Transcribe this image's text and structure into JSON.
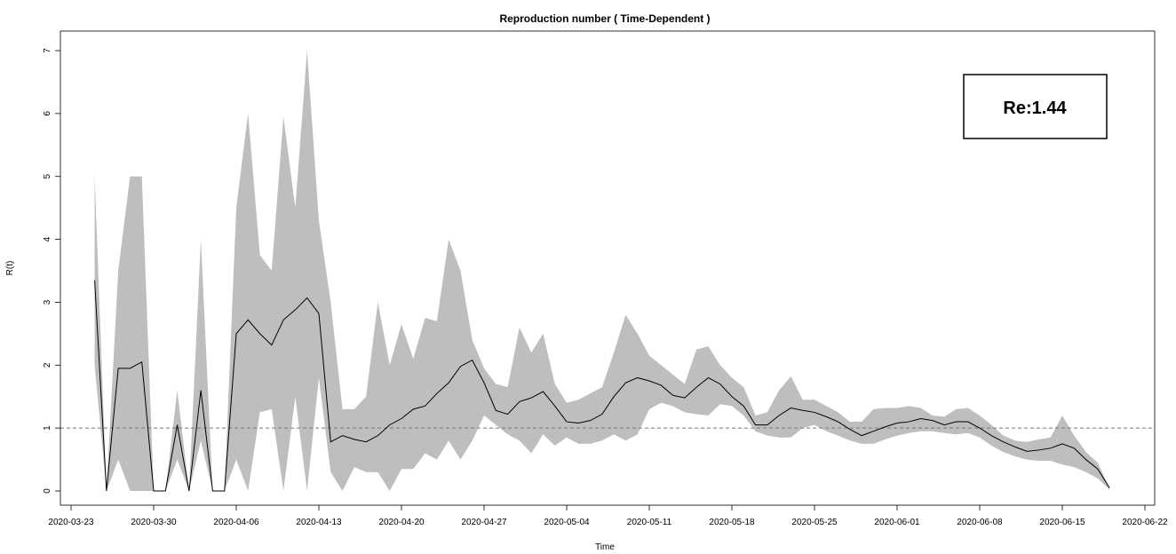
{
  "chart_data": {
    "type": "area",
    "title": "Reproduction number ( Time-Dependent )",
    "xlabel": "Time",
    "ylabel": "R(t)",
    "x_ticks": [
      "2020-03-23",
      "2020-03-30",
      "2020-04-06",
      "2020-04-13",
      "2020-04-20",
      "2020-04-27",
      "2020-05-04",
      "2020-05-11",
      "2020-05-18",
      "2020-05-25",
      "2020-06-01",
      "2020-06-08",
      "2020-06-15",
      "2020-06-22"
    ],
    "y_ticks": [
      "0",
      "1",
      "2",
      "3",
      "4",
      "5",
      "6",
      "7"
    ],
    "xlim": [
      "2020-03-23",
      "2020-06-22"
    ],
    "ylim": [
      0,
      7
    ],
    "reference_line": 1,
    "grid": false,
    "annotation": "Re:1.44",
    "series": [
      {
        "type": "line",
        "color": "#000000",
        "x": [
          "2020-03-25",
          "2020-03-26",
          "2020-03-27",
          "2020-03-28",
          "2020-03-29",
          "2020-03-30",
          "2020-03-31",
          "2020-04-01",
          "2020-04-02",
          "2020-04-03",
          "2020-04-04",
          "2020-04-05",
          "2020-04-06",
          "2020-04-07",
          "2020-04-08",
          "2020-04-09",
          "2020-04-10",
          "2020-04-11",
          "2020-04-12",
          "2020-04-13",
          "2020-04-14",
          "2020-04-15",
          "2020-04-16",
          "2020-04-17",
          "2020-04-18",
          "2020-04-19",
          "2020-04-20",
          "2020-04-21",
          "2020-04-22",
          "2020-04-23",
          "2020-04-24",
          "2020-04-25",
          "2020-04-26",
          "2020-04-27",
          "2020-04-28",
          "2020-04-29",
          "2020-04-30",
          "2020-05-01",
          "2020-05-02",
          "2020-05-03",
          "2020-05-04",
          "2020-05-05",
          "2020-05-06",
          "2020-05-07",
          "2020-05-08",
          "2020-05-09",
          "2020-05-10",
          "2020-05-11",
          "2020-05-12",
          "2020-05-13",
          "2020-05-14",
          "2020-05-15",
          "2020-05-16",
          "2020-05-17",
          "2020-05-18",
          "2020-05-19",
          "2020-05-20",
          "2020-05-21",
          "2020-05-22",
          "2020-05-23",
          "2020-05-24",
          "2020-05-25",
          "2020-05-26",
          "2020-05-27",
          "2020-05-28",
          "2020-05-29",
          "2020-05-30",
          "2020-05-31",
          "2020-06-01",
          "2020-06-02",
          "2020-06-03",
          "2020-06-04",
          "2020-06-05",
          "2020-06-06",
          "2020-06-07",
          "2020-06-08",
          "2020-06-09",
          "2020-06-10",
          "2020-06-11",
          "2020-06-12",
          "2020-06-13",
          "2020-06-14",
          "2020-06-15",
          "2020-06-16",
          "2020-06-17",
          "2020-06-18",
          "2020-06-19"
        ],
        "values": [
          3.35,
          0,
          1.95,
          1.95,
          2.05,
          0,
          0,
          1.05,
          0,
          1.6,
          0,
          0,
          2.5,
          2.72,
          2.5,
          2.32,
          2.72,
          2.88,
          3.07,
          2.82,
          0.78,
          0.88,
          0.82,
          0.78,
          0.88,
          1.05,
          1.15,
          1.3,
          1.35,
          1.55,
          1.72,
          1.98,
          2.08,
          1.72,
          1.28,
          1.22,
          1.42,
          1.48,
          1.58,
          1.35,
          1.1,
          1.08,
          1.12,
          1.22,
          1.5,
          1.72,
          1.8,
          1.75,
          1.68,
          1.52,
          1.48,
          1.65,
          1.8,
          1.7,
          1.5,
          1.35,
          1.05,
          1.05,
          1.2,
          1.32,
          1.28,
          1.25,
          1.18,
          1.1,
          0.98,
          0.88,
          0.95,
          1.02,
          1.08,
          1.1,
          1.15,
          1.12,
          1.05,
          1.1,
          1.1,
          1.0,
          0.88,
          0.78,
          0.7,
          0.63,
          0.65,
          0.68,
          0.75,
          0.68,
          0.5,
          0.35,
          0.05
        ]
      },
      {
        "type": "band",
        "color": "#bebebe",
        "x": [
          "2020-03-25",
          "2020-03-26",
          "2020-03-27",
          "2020-03-28",
          "2020-03-29",
          "2020-03-30",
          "2020-03-31",
          "2020-04-01",
          "2020-04-02",
          "2020-04-03",
          "2020-04-04",
          "2020-04-05",
          "2020-04-06",
          "2020-04-07",
          "2020-04-08",
          "2020-04-09",
          "2020-04-10",
          "2020-04-11",
          "2020-04-12",
          "2020-04-13",
          "2020-04-14",
          "2020-04-15",
          "2020-04-16",
          "2020-04-17",
          "2020-04-18",
          "2020-04-19",
          "2020-04-20",
          "2020-04-21",
          "2020-04-22",
          "2020-04-23",
          "2020-04-24",
          "2020-04-25",
          "2020-04-26",
          "2020-04-27",
          "2020-04-28",
          "2020-04-29",
          "2020-04-30",
          "2020-05-01",
          "2020-05-02",
          "2020-05-03",
          "2020-05-04",
          "2020-05-05",
          "2020-05-06",
          "2020-05-07",
          "2020-05-08",
          "2020-05-09",
          "2020-05-10",
          "2020-05-11",
          "2020-05-12",
          "2020-05-13",
          "2020-05-14",
          "2020-05-15",
          "2020-05-16",
          "2020-05-17",
          "2020-05-18",
          "2020-05-19",
          "2020-05-20",
          "2020-05-21",
          "2020-05-22",
          "2020-05-23",
          "2020-05-24",
          "2020-05-25",
          "2020-05-26",
          "2020-05-27",
          "2020-05-28",
          "2020-05-29",
          "2020-05-30",
          "2020-05-31",
          "2020-06-01",
          "2020-06-02",
          "2020-06-03",
          "2020-06-04",
          "2020-06-05",
          "2020-06-06",
          "2020-06-07",
          "2020-06-08",
          "2020-06-09",
          "2020-06-10",
          "2020-06-11",
          "2020-06-12",
          "2020-06-13",
          "2020-06-14",
          "2020-06-15",
          "2020-06-16",
          "2020-06-17",
          "2020-06-18",
          "2020-06-19"
        ],
        "upper": [
          5.0,
          0,
          3.5,
          5.0,
          5.0,
          0,
          0,
          1.6,
          0,
          4.0,
          0,
          0,
          4.5,
          6.0,
          3.75,
          3.5,
          5.95,
          4.5,
          7.0,
          4.3,
          3.0,
          1.3,
          1.3,
          1.5,
          3.0,
          2.0,
          2.65,
          2.1,
          2.75,
          2.7,
          4.0,
          3.5,
          2.4,
          1.95,
          1.7,
          1.65,
          2.6,
          2.2,
          2.5,
          1.7,
          1.4,
          1.45,
          1.55,
          1.65,
          2.2,
          2.8,
          2.5,
          2.15,
          2.0,
          1.85,
          1.7,
          2.25,
          2.3,
          2.0,
          1.8,
          1.65,
          1.2,
          1.25,
          1.6,
          1.82,
          1.45,
          1.45,
          1.35,
          1.25,
          1.1,
          1.1,
          1.3,
          1.32,
          1.32,
          1.35,
          1.32,
          1.2,
          1.18,
          1.3,
          1.32,
          1.2,
          1.05,
          0.88,
          0.8,
          0.78,
          0.82,
          0.85,
          1.2,
          0.88,
          0.62,
          0.45,
          0.05
        ],
        "lower": [
          2.0,
          0,
          0.5,
          0,
          0,
          0,
          0,
          0.5,
          0,
          0.8,
          0,
          0,
          0.5,
          0,
          1.25,
          1.3,
          0,
          1.5,
          0,
          1.8,
          0.3,
          0,
          0.38,
          0.3,
          0.3,
          0,
          0.35,
          0.35,
          0.6,
          0.5,
          0.8,
          0.5,
          0.8,
          1.2,
          1.05,
          0.9,
          0.8,
          0.6,
          0.9,
          0.72,
          0.85,
          0.75,
          0.75,
          0.8,
          0.9,
          0.8,
          0.9,
          1.3,
          1.4,
          1.35,
          1.25,
          1.22,
          1.2,
          1.38,
          1.35,
          1.2,
          0.95,
          0.88,
          0.85,
          0.85,
          1.0,
          1.05,
          0.95,
          0.88,
          0.8,
          0.75,
          0.75,
          0.82,
          0.88,
          0.92,
          0.95,
          0.95,
          0.92,
          0.9,
          0.92,
          0.85,
          0.72,
          0.62,
          0.55,
          0.5,
          0.48,
          0.48,
          0.42,
          0.38,
          0.3,
          0.2,
          0.02
        ]
      }
    ]
  }
}
